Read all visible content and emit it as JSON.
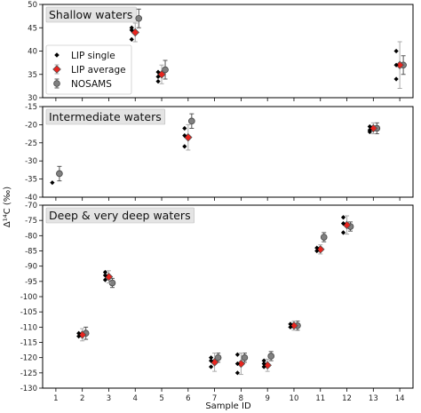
{
  "chart_data": {
    "type": "scatter",
    "xlabel": "Sample ID",
    "ylabel": "Δ¹⁴C (‰)",
    "x_ticks": [
      1,
      2,
      3,
      4,
      5,
      6,
      7,
      8,
      9,
      10,
      11,
      12,
      13,
      14
    ],
    "xlim": [
      0.5,
      14.5
    ],
    "legend": {
      "placement": "upper-left of top panel",
      "entries": [
        {
          "label": "LIP single",
          "series": "lip_single"
        },
        {
          "label": "LIP average",
          "series": "lip_average"
        },
        {
          "label": "NOSAMS",
          "series": "nosams"
        }
      ]
    },
    "styles": {
      "lip_single": {
        "marker": "diamond",
        "color": "#000000"
      },
      "lip_average": {
        "marker": "diamond",
        "color": "#e8251f",
        "edge": "#555555"
      },
      "nosams": {
        "marker": "circle",
        "color": "#808080",
        "edge": "#444444"
      }
    },
    "panels": [
      {
        "title": "Shallow waters",
        "ylim": [
          30,
          50
        ],
        "yticks": [
          30,
          35,
          40,
          45,
          50
        ],
        "lip_single": [
          {
            "x": 4,
            "y": [
              45,
              44.5,
              42.5
            ]
          },
          {
            "x": 5,
            "y": [
              35.5,
              34.5,
              33.5
            ]
          },
          {
            "x": 14,
            "y": [
              40,
              37,
              34
            ]
          }
        ],
        "lip_average": [
          {
            "x": 4,
            "y": 44,
            "err": 2
          },
          {
            "x": 5,
            "y": 35,
            "err": 2
          },
          {
            "x": 14,
            "y": 37,
            "err": 5
          }
        ],
        "nosams": [
          {
            "x": 4,
            "y": 47,
            "err": 2
          },
          {
            "x": 5,
            "y": 36,
            "err": 2
          },
          {
            "x": 14,
            "y": 37,
            "err": 2
          }
        ]
      },
      {
        "title": "Intermediate waters",
        "ylim": [
          -40,
          -15
        ],
        "yticks": [
          -40,
          -35,
          -30,
          -25,
          -20,
          -15
        ],
        "lip_single": [
          {
            "x": 1,
            "y": [
              -36
            ]
          },
          {
            "x": 6,
            "y": [
              -21,
              -23,
              -26
            ]
          },
          {
            "x": 13,
            "y": [
              -20.5,
              -21.5,
              -22
            ]
          }
        ],
        "lip_average": [
          {
            "x": 6,
            "y": -23.5,
            "err": 3.5
          },
          {
            "x": 13,
            "y": -21,
            "err": 1.5
          }
        ],
        "nosams": [
          {
            "x": 1,
            "y": -33.5,
            "err": 2
          },
          {
            "x": 6,
            "y": -19,
            "err": 2
          },
          {
            "x": 13,
            "y": -21,
            "err": 1.5
          }
        ]
      },
      {
        "title": "Deep & very deep waters",
        "ylim": [
          -130,
          -70
        ],
        "yticks": [
          -130,
          -125,
          -120,
          -115,
          -110,
          -105,
          -100,
          -95,
          -90,
          -85,
          -80,
          -75,
          -70
        ],
        "lip_single": [
          {
            "x": 2,
            "y": [
              -112,
              -113
            ]
          },
          {
            "x": 3,
            "y": [
              -92,
              -93,
              -94.5
            ]
          },
          {
            "x": 7,
            "y": [
              -120,
              -121,
              -123
            ]
          },
          {
            "x": 8,
            "y": [
              -119,
              -122,
              -125
            ]
          },
          {
            "x": 9,
            "y": [
              -121,
              -122,
              -123
            ]
          },
          {
            "x": 10,
            "y": [
              -109,
              -110
            ]
          },
          {
            "x": 11,
            "y": [
              -84,
              -85
            ]
          },
          {
            "x": 12,
            "y": [
              -74,
              -76,
              -79
            ]
          }
        ],
        "lip_average": [
          {
            "x": 2,
            "y": -112.5,
            "err": 2
          },
          {
            "x": 3,
            "y": -93.5,
            "err": 2
          },
          {
            "x": 7,
            "y": -121.5,
            "err": 3
          },
          {
            "x": 8,
            "y": -122,
            "err": 3.5
          },
          {
            "x": 9,
            "y": -122.5,
            "err": 2
          },
          {
            "x": 10,
            "y": -109.5,
            "err": 1.5
          },
          {
            "x": 11,
            "y": -84.5,
            "err": 1.5
          },
          {
            "x": 12,
            "y": -76.5,
            "err": 3
          }
        ],
        "nosams": [
          {
            "x": 2,
            "y": -112,
            "err": 2
          },
          {
            "x": 3,
            "y": -95.5,
            "err": 1.5
          },
          {
            "x": 7,
            "y": -120,
            "err": 1.5
          },
          {
            "x": 8,
            "y": -120,
            "err": 1.5
          },
          {
            "x": 9,
            "y": -119.5,
            "err": 1.5
          },
          {
            "x": 10,
            "y": -109.5,
            "err": 1.5
          },
          {
            "x": 11,
            "y": -80.5,
            "err": 1.5
          },
          {
            "x": 12,
            "y": -77,
            "err": 1.5
          }
        ]
      }
    ]
  }
}
